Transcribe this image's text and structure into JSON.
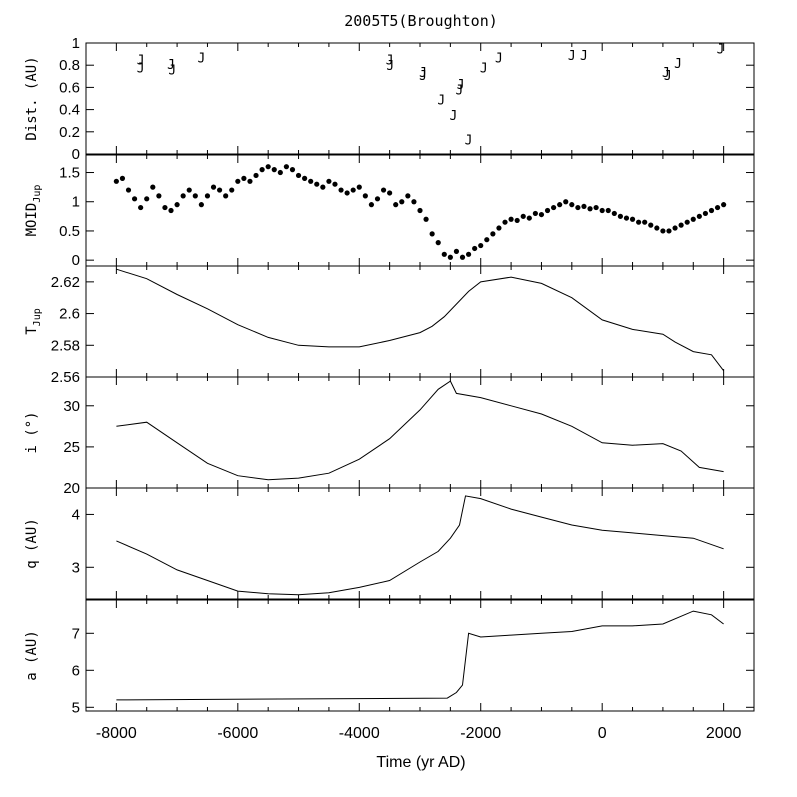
{
  "title": "2005T5(Broughton)",
  "chart_data": [
    {
      "type": "scatter",
      "ylabel": "Dist. (AU)",
      "ylim": [
        0,
        1
      ],
      "yticks": [
        "0",
        "0.2",
        "0.4",
        "0.6",
        "0.8",
        "1"
      ],
      "marker": "J",
      "points": [
        {
          "x": -7600,
          "y": 0.85
        },
        {
          "x": -7600,
          "y": 0.78
        },
        {
          "x": -7100,
          "y": 0.81
        },
        {
          "x": -7080,
          "y": 0.76
        },
        {
          "x": -6600,
          "y": 0.87
        },
        {
          "x": -3500,
          "y": 0.85
        },
        {
          "x": -3490,
          "y": 0.8
        },
        {
          "x": -2950,
          "y": 0.74
        },
        {
          "x": -2950,
          "y": 0.71
        },
        {
          "x": -2650,
          "y": 0.49
        },
        {
          "x": -2450,
          "y": 0.35
        },
        {
          "x": -2350,
          "y": 0.58
        },
        {
          "x": -2330,
          "y": 0.63
        },
        {
          "x": -2200,
          "y": 0.13
        },
        {
          "x": -1950,
          "y": 0.78
        },
        {
          "x": -1700,
          "y": 0.87
        },
        {
          "x": -500,
          "y": 0.89
        },
        {
          "x": -300,
          "y": 0.89
        },
        {
          "x": 1050,
          "y": 0.74
        },
        {
          "x": 1080,
          "y": 0.71
        },
        {
          "x": 1250,
          "y": 0.82
        },
        {
          "x": 1950,
          "y": 0.95
        }
      ]
    },
    {
      "type": "scatter",
      "ylabel": "MOID",
      "ylabel_sub": "Jup",
      "ylim": [
        -0.1,
        1.8
      ],
      "yticks": [
        "0",
        "0.5",
        "1",
        "1.5"
      ],
      "marker": "dot",
      "series": [
        {
          "x": [
            -8000,
            -7900,
            -7800,
            -7700,
            -7600,
            -7500,
            -7400,
            -7300,
            -7200,
            -7100,
            -7000,
            -6900,
            -6800,
            -6700,
            -6600,
            -6500,
            -6400,
            -6300,
            -6200,
            -6100,
            -6000,
            -5900,
            -5800,
            -5700,
            -5600,
            -5500,
            -5400,
            -5300,
            -5200,
            -5100,
            -5000,
            -4900,
            -4800,
            -4700,
            -4600,
            -4500,
            -4400,
            -4300,
            -4200,
            -4100,
            -4000,
            -3900,
            -3800,
            -3700,
            -3600,
            -3500,
            -3400,
            -3300,
            -3200,
            -3100,
            -3000,
            -2900,
            -2800,
            -2700,
            -2600,
            -2500,
            -2400,
            -2300,
            -2200,
            -2100,
            -2000,
            -1900,
            -1800,
            -1700,
            -1600,
            -1500,
            -1400,
            -1300,
            -1200,
            -1100,
            -1000,
            -900,
            -800,
            -700,
            -600,
            -500,
            -400,
            -300,
            -200,
            -100,
            0,
            100,
            200,
            300,
            400,
            500,
            600,
            700,
            800,
            900,
            1000,
            1100,
            1200,
            1300,
            1400,
            1500,
            1600,
            1700,
            1800,
            1900,
            2000
          ],
          "y": [
            1.35,
            1.4,
            1.2,
            1.05,
            0.9,
            1.05,
            1.25,
            1.1,
            0.9,
            0.85,
            0.95,
            1.1,
            1.2,
            1.1,
            0.95,
            1.1,
            1.25,
            1.2,
            1.1,
            1.2,
            1.35,
            1.4,
            1.35,
            1.45,
            1.55,
            1.6,
            1.55,
            1.5,
            1.6,
            1.55,
            1.45,
            1.4,
            1.35,
            1.3,
            1.25,
            1.35,
            1.3,
            1.2,
            1.15,
            1.2,
            1.25,
            1.1,
            0.95,
            1.05,
            1.2,
            1.15,
            0.95,
            1.0,
            1.1,
            1.0,
            0.85,
            0.7,
            0.45,
            0.3,
            0.1,
            0.05,
            0.15,
            0.05,
            0.1,
            0.2,
            0.25,
            0.35,
            0.45,
            0.55,
            0.65,
            0.7,
            0.68,
            0.75,
            0.72,
            0.8,
            0.78,
            0.85,
            0.9,
            0.95,
            1.0,
            0.95,
            0.9,
            0.92,
            0.88,
            0.9,
            0.85,
            0.85,
            0.8,
            0.75,
            0.72,
            0.7,
            0.65,
            0.65,
            0.6,
            0.55,
            0.5,
            0.5,
            0.55,
            0.6,
            0.65,
            0.7,
            0.75,
            0.8,
            0.85,
            0.9,
            0.95
          ]
        }
      ]
    },
    {
      "type": "line",
      "ylabel": "T",
      "ylabel_sub": "Jup",
      "ylim": [
        2.56,
        2.63
      ],
      "yticks": [
        "2.56",
        "2.58",
        "2.6",
        "2.62"
      ],
      "series": [
        {
          "x": [
            -8000,
            -7500,
            -7000,
            -6500,
            -6000,
            -5500,
            -5000,
            -4500,
            -4000,
            -3500,
            -3000,
            -2800,
            -2600,
            -2400,
            -2200,
            -2000,
            -1500,
            -1000,
            -500,
            0,
            500,
            1000,
            1200,
            1500,
            1800,
            2000
          ],
          "y": [
            2.628,
            2.622,
            2.612,
            2.603,
            2.593,
            2.585,
            2.58,
            2.579,
            2.579,
            2.583,
            2.588,
            2.592,
            2.598,
            2.606,
            2.614,
            2.62,
            2.623,
            2.619,
            2.61,
            2.596,
            2.59,
            2.587,
            2.582,
            2.576,
            2.574,
            2.564
          ]
        }
      ]
    },
    {
      "type": "line",
      "ylabel": "i (°)",
      "ylim": [
        20,
        33.5
      ],
      "yticks": [
        "20",
        "25",
        "30"
      ],
      "series": [
        {
          "x": [
            -8000,
            -7500,
            -7000,
            -6500,
            -6000,
            -5500,
            -5000,
            -4500,
            -4000,
            -3500,
            -3000,
            -2700,
            -2500,
            -2400,
            -2000,
            -1500,
            -1000,
            -500,
            0,
            500,
            1000,
            1300,
            1600,
            2000
          ],
          "y": [
            27.5,
            28.0,
            25.5,
            23.0,
            21.5,
            21.0,
            21.2,
            21.8,
            23.5,
            26.0,
            29.5,
            32.0,
            33.0,
            31.5,
            31.0,
            30.0,
            29.0,
            27.5,
            25.5,
            25.2,
            25.4,
            24.5,
            22.5,
            22.0
          ]
        }
      ]
    },
    {
      "type": "line",
      "ylabel": "q (AU)",
      "ylim": [
        2.4,
        4.5
      ],
      "yticks": [
        "3",
        "4"
      ],
      "series": [
        {
          "x": [
            -8000,
            -7500,
            -7000,
            -6500,
            -6000,
            -5500,
            -5000,
            -4500,
            -4000,
            -3500,
            -3000,
            -2700,
            -2500,
            -2350,
            -2250,
            -2000,
            -1500,
            -1000,
            -500,
            0,
            500,
            1000,
            1500,
            2000
          ],
          "y": [
            3.5,
            3.25,
            2.95,
            2.75,
            2.55,
            2.5,
            2.48,
            2.52,
            2.62,
            2.75,
            3.1,
            3.3,
            3.55,
            3.8,
            4.35,
            4.3,
            4.1,
            3.95,
            3.8,
            3.7,
            3.65,
            3.6,
            3.55,
            3.35
          ]
        }
      ]
    },
    {
      "type": "line",
      "ylabel": "a (AU)",
      "ylim": [
        4.9,
        7.9
      ],
      "yticks": [
        "5",
        "6",
        "7"
      ],
      "series": [
        {
          "x": [
            -8000,
            -2550,
            -2400,
            -2300,
            -2200,
            -2000,
            -1500,
            -1000,
            -500,
            0,
            500,
            1000,
            1500,
            1800,
            2000
          ],
          "y": [
            5.2,
            5.25,
            5.4,
            5.6,
            7.0,
            6.9,
            6.95,
            7.0,
            7.05,
            7.2,
            7.2,
            7.25,
            7.6,
            7.5,
            7.25
          ]
        }
      ]
    }
  ],
  "x_axis": {
    "label": "Time (yr AD)",
    "range": [
      -8500,
      2500
    ],
    "ticks": [
      "-8000",
      "-6000",
      "-4000",
      "-2000",
      "0",
      "2000"
    ]
  }
}
